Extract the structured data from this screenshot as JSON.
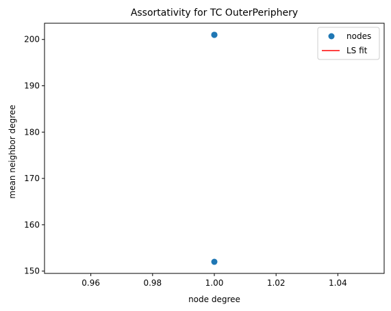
{
  "chart_data": {
    "type": "scatter",
    "title": "Assortativity for TC OuterPeriphery",
    "xlabel": "node degree",
    "ylabel": "mean neighbor degree",
    "xlim": [
      0.945,
      1.055
    ],
    "ylim": [
      149.5,
      203.5
    ],
    "xticks": [
      "0.96",
      "0.98",
      "1.00",
      "1.02",
      "1.04"
    ],
    "xtick_values": [
      0.96,
      0.98,
      1.0,
      1.02,
      1.04
    ],
    "yticks": [
      "150",
      "160",
      "170",
      "180",
      "190",
      "200"
    ],
    "ytick_values": [
      150,
      160,
      170,
      180,
      190,
      200
    ],
    "grid": false,
    "legend_position": "top-right",
    "series": [
      {
        "name": "nodes",
        "kind": "scatter",
        "color": "#1f77b4",
        "points": [
          {
            "x": 1.0,
            "y": 201
          },
          {
            "x": 1.0,
            "y": 201
          },
          {
            "x": 1.0,
            "y": 201
          },
          {
            "x": 1.0,
            "y": 152
          }
        ]
      },
      {
        "name": "LS fit",
        "kind": "line",
        "color": "#ff0000",
        "points": []
      }
    ]
  }
}
